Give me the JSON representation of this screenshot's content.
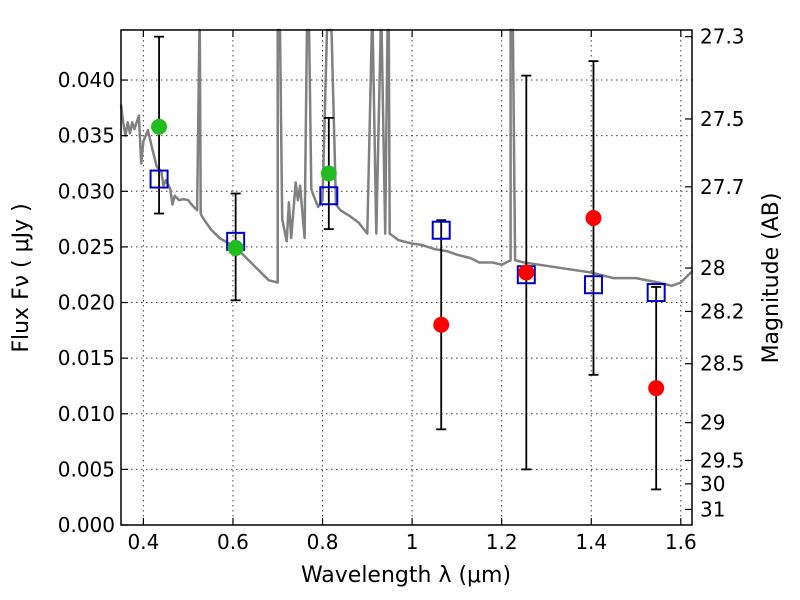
{
  "chart_data": {
    "type": "scatter",
    "xlabel": "Wavelength  λ (μm)",
    "ylabel": "Flux  Fν  ( μJy )",
    "y2label": "Magnitude (AB)",
    "xlim": [
      0.35,
      1.625
    ],
    "ylim": [
      0.0,
      0.0445
    ],
    "grid": true,
    "x_ticks": [
      0.4,
      0.6,
      0.8,
      1.0,
      1.2,
      1.4,
      1.6
    ],
    "x_tick_labels": [
      "0.4",
      "0.6",
      "0.8",
      "1",
      "1.2",
      "1.4",
      "1.6"
    ],
    "y_ticks": [
      0.0,
      0.005,
      0.01,
      0.015,
      0.02,
      0.025,
      0.03,
      0.035,
      0.04
    ],
    "y_tick_labels": [
      "0.000",
      "0.005",
      "0.010",
      "0.015",
      "0.020",
      "0.025",
      "0.030",
      "0.035",
      "0.040"
    ],
    "y2_ticks": [
      {
        "label": "27.3",
        "flux": 0.0439
      },
      {
        "label": "27.5",
        "flux": 0.0365
      },
      {
        "label": "27.7",
        "flux": 0.0304
      },
      {
        "label": "28",
        "flux": 0.0231
      },
      {
        "label": "28.2",
        "flux": 0.0192
      },
      {
        "label": "28.5",
        "flux": 0.0145
      },
      {
        "label": "29",
        "flux": 0.0092
      },
      {
        "label": "29.5",
        "flux": 0.0058
      },
      {
        "label": "30",
        "flux": 0.0037
      },
      {
        "label": "31",
        "flux": 0.0014
      }
    ],
    "series": [
      {
        "marker": "circle",
        "color": "#22bb22",
        "points": [
          {
            "x": 0.435,
            "y": 0.0358,
            "yerr_low": 0.028,
            "yerr_high": 0.0439
          },
          {
            "x": 0.606,
            "y": 0.0249,
            "yerr_low": 0.0202,
            "yerr_high": 0.0298
          },
          {
            "x": 0.814,
            "y": 0.0316,
            "yerr_low": 0.0266,
            "yerr_high": 0.0366
          }
        ]
      },
      {
        "marker": "circle",
        "color": "#ff0000",
        "points": [
          {
            "x": 1.065,
            "y": 0.018,
            "yerr_low": 0.0086,
            "yerr_high": 0.0274
          },
          {
            "x": 1.255,
            "y": 0.0227,
            "yerr_low": 0.005,
            "yerr_high": 0.0404
          },
          {
            "x": 1.405,
            "y": 0.0276,
            "yerr_low": 0.0135,
            "yerr_high": 0.0417
          },
          {
            "x": 1.545,
            "y": 0.0123,
            "yerr_low": 0.0032,
            "yerr_high": 0.0214
          }
        ]
      },
      {
        "marker": "square",
        "color": "#0000cc",
        "points": [
          {
            "x": 0.435,
            "y": 0.0311
          },
          {
            "x": 0.606,
            "y": 0.0255
          },
          {
            "x": 0.814,
            "y": 0.0296
          },
          {
            "x": 1.065,
            "y": 0.0265
          },
          {
            "x": 1.255,
            "y": 0.0225
          },
          {
            "x": 1.405,
            "y": 0.0216
          },
          {
            "x": 1.545,
            "y": 0.0209
          }
        ]
      },
      {
        "type": "line",
        "color": "#808080",
        "x": [
          0.35,
          0.355,
          0.36,
          0.365,
          0.37,
          0.375,
          0.38,
          0.39,
          0.395,
          0.4,
          0.41,
          0.42,
          0.43,
          0.44,
          0.445,
          0.45,
          0.46,
          0.465,
          0.47,
          0.48,
          0.49,
          0.5,
          0.51,
          0.52,
          0.525,
          0.526,
          0.528,
          0.53,
          0.55,
          0.57,
          0.6,
          0.62,
          0.64,
          0.66,
          0.68,
          0.7,
          0.7,
          0.705,
          0.71,
          0.72,
          0.725,
          0.73,
          0.74,
          0.745,
          0.75,
          0.76,
          0.765,
          0.77,
          0.775,
          0.78,
          0.79,
          0.8,
          0.81,
          0.82,
          0.83,
          0.84,
          0.86,
          0.88,
          0.9,
          0.91,
          0.912,
          0.92,
          0.93,
          0.932,
          0.94,
          0.945,
          0.948,
          0.95,
          0.97,
          1.0,
          1.02,
          1.05,
          1.08,
          1.1,
          1.13,
          1.15,
          1.18,
          1.2,
          1.22,
          1.22,
          1.225,
          1.23,
          1.25,
          1.3,
          1.35,
          1.4,
          1.45,
          1.5,
          1.55,
          1.58,
          1.6,
          1.625
        ],
        "y": [
          0.0378,
          0.0362,
          0.035,
          0.0362,
          0.0352,
          0.0362,
          0.0356,
          0.0368,
          0.0325,
          0.0345,
          0.0355,
          0.0338,
          0.0322,
          0.0318,
          0.0305,
          0.031,
          0.0302,
          0.0288,
          0.0296,
          0.0292,
          0.0293,
          0.0292,
          0.0287,
          0.0283,
          0.0445,
          0.0445,
          0.028,
          0.0278,
          0.0266,
          0.0258,
          0.0251,
          0.0244,
          0.0236,
          0.0228,
          0.022,
          0.0218,
          0.0445,
          0.0445,
          0.0275,
          0.0255,
          0.029,
          0.0258,
          0.0308,
          0.0292,
          0.0305,
          0.0258,
          0.0445,
          0.0445,
          0.0302,
          0.0296,
          0.0286,
          0.0292,
          0.0445,
          0.0445,
          0.0288,
          0.0283,
          0.0278,
          0.0272,
          0.0262,
          0.0445,
          0.0445,
          0.0262,
          0.0445,
          0.0445,
          0.0262,
          0.0445,
          0.0445,
          0.0262,
          0.0256,
          0.0253,
          0.0252,
          0.0248,
          0.0246,
          0.0243,
          0.024,
          0.0236,
          0.0236,
          0.0234,
          0.0238,
          0.0445,
          0.0445,
          0.0238,
          0.0236,
          0.0233,
          0.023,
          0.0227,
          0.0222,
          0.0222,
          0.0218,
          0.0215,
          0.0218,
          0.0228
        ]
      }
    ]
  }
}
